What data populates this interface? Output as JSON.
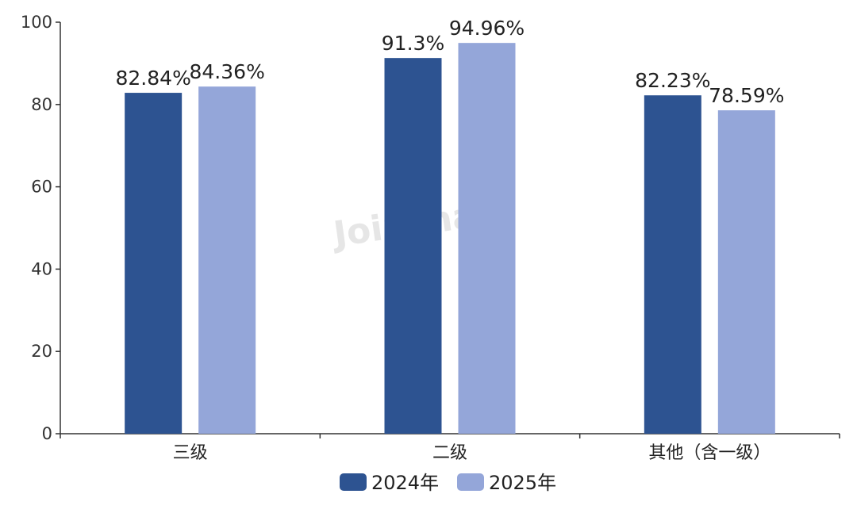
{
  "chart_data": {
    "type": "bar",
    "categories": [
      "三级",
      "二级",
      "其他（含一级）"
    ],
    "series": [
      {
        "name": "2024年",
        "values": [
          82.84,
          91.3,
          82.23
        ],
        "labels": [
          "82.84%",
          "91.3%",
          "82.23%"
        ],
        "color": "#2d5391"
      },
      {
        "name": "2025年",
        "values": [
          84.36,
          94.96,
          78.59
        ],
        "labels": [
          "84.36%",
          "94.96%",
          "78.59%"
        ],
        "color": "#94a6d9"
      }
    ],
    "ylim": [
      0,
      100
    ],
    "yticks": [
      0,
      20,
      40,
      60,
      80,
      100
    ],
    "grid": false,
    "legend_position": "bottom",
    "watermark": "Joinchain"
  }
}
